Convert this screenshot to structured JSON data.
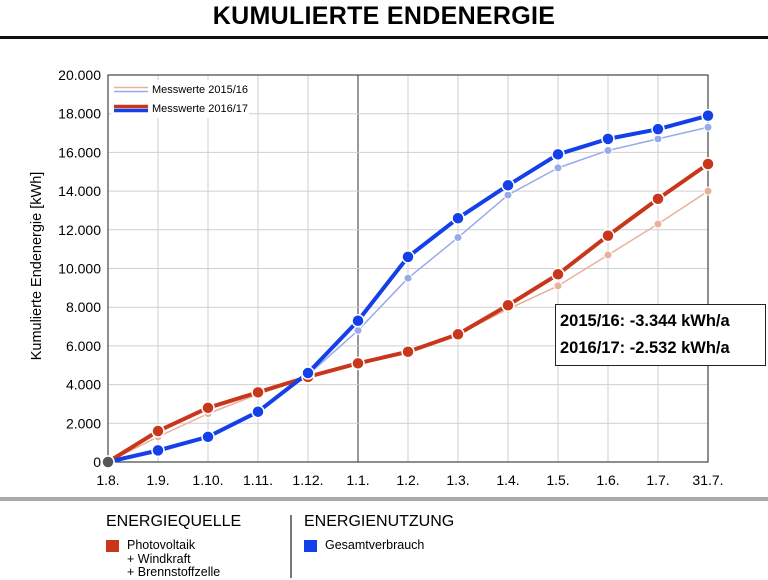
{
  "title": "KUMULIERTE ENDENERGIE",
  "summary": {
    "line1": "2015/16: -3.344 kWh/a",
    "line2": "2016/17: -2.532 kWh/a"
  },
  "bottom_legend": {
    "source_heading": "ENERGIEQUELLE",
    "source_item": "Photovoltaik\n+ Windkraft\n+ Brennstoffzelle",
    "source_color": "#c8371b",
    "use_heading": "ENERGIENUTZUNG",
    "use_item": "Gesamtverbrauch",
    "use_color": "#1340e8"
  },
  "chart_data": {
    "type": "line",
    "title": "KUMULIERTE ENDENERGIE",
    "xlabel": "",
    "ylabel": "Kumulierte Endenergie [kWh]",
    "categories": [
      "1.8.",
      "1.9.",
      "1.10.",
      "1.11.",
      "1.12.",
      "1.1.",
      "1.2.",
      "1.3.",
      "1.4.",
      "1.5.",
      "1.6.",
      "1.7.",
      "31.7."
    ],
    "yticks": [
      "0",
      "2.000",
      "4.000",
      "6.000",
      "8.000",
      "10.000",
      "12.000",
      "14.000",
      "16.000",
      "18.000",
      "20.000"
    ],
    "ylim": [
      0,
      20000
    ],
    "grid": true,
    "legend_position": "top-left",
    "series": [
      {
        "name": "Messwerte 2015/16",
        "group": "Energiequelle",
        "year": "2015/16",
        "color": "#eab09c",
        "width": 1.5,
        "marker": 4,
        "values": [
          0,
          1300,
          2500,
          3500,
          4400,
          5100,
          5700,
          6600,
          7900,
          9100,
          10700,
          12300,
          14000
        ]
      },
      {
        "name": "Messwerte 2015/16",
        "group": "Energienutzung",
        "year": "2015/16",
        "color": "#98aaea",
        "width": 1.5,
        "marker": 4,
        "values": [
          0,
          500,
          1300,
          2600,
          4500,
          6800,
          9500,
          11600,
          13800,
          15200,
          16100,
          16700,
          17300
        ]
      },
      {
        "name": "Messwerte 2016/17",
        "group": "Energiequelle",
        "year": "2016/17",
        "color": "#c8371b",
        "width": 4,
        "marker": 6,
        "values": [
          0,
          1600,
          2800,
          3600,
          4400,
          5100,
          5700,
          6600,
          8100,
          9700,
          11700,
          13600,
          15400
        ]
      },
      {
        "name": "Messwerte 2016/17",
        "group": "Energienutzung",
        "year": "2016/17",
        "color": "#1340e8",
        "width": 4,
        "marker": 6,
        "values": [
          0,
          600,
          1300,
          2600,
          4600,
          7300,
          10600,
          12600,
          14300,
          15900,
          16700,
          17200,
          17900
        ]
      }
    ],
    "legend": [
      {
        "label": "Messwerte 2015/16",
        "colors": [
          "#eab09c",
          "#98aaea"
        ]
      },
      {
        "label": "Messwerte 2016/17",
        "colors": [
          "#c8371b",
          "#1340e8"
        ]
      }
    ]
  }
}
